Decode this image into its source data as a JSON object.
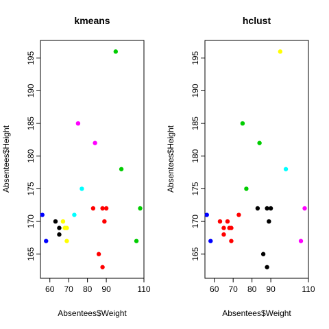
{
  "chart_data": [
    {
      "type": "scatter",
      "title": "kmeans",
      "xlabel": "Absentees$Weight",
      "ylabel": "Absentees$Height",
      "xlim": [
        55,
        110
      ],
      "ylim": [
        161.3,
        197.7
      ],
      "xticks": [
        60,
        70,
        80,
        90,
        110
      ],
      "yticks": [
        165,
        170,
        175,
        180,
        185,
        190,
        195
      ],
      "grid": false,
      "points": [
        {
          "x": 56,
          "y": 171,
          "color": "#0000FF"
        },
        {
          "x": 58,
          "y": 167,
          "color": "#0000FF"
        },
        {
          "x": 63,
          "y": 170,
          "color": "#000000"
        },
        {
          "x": 65,
          "y": 169,
          "color": "#000000"
        },
        {
          "x": 65,
          "y": 168,
          "color": "#000000"
        },
        {
          "x": 67,
          "y": 170,
          "color": "#FFFF00"
        },
        {
          "x": 68,
          "y": 169,
          "color": "#FFFF00"
        },
        {
          "x": 69,
          "y": 169,
          "color": "#FFFF00"
        },
        {
          "x": 69,
          "y": 167,
          "color": "#FFFF00"
        },
        {
          "x": 73,
          "y": 171,
          "color": "#00FFFF"
        },
        {
          "x": 75,
          "y": 185,
          "color": "#FF00FF"
        },
        {
          "x": 77,
          "y": 175,
          "color": "#00FFFF"
        },
        {
          "x": 83,
          "y": 172,
          "color": "#FF0000"
        },
        {
          "x": 84,
          "y": 182,
          "color": "#FF00FF"
        },
        {
          "x": 86,
          "y": 165,
          "color": "#FF0000"
        },
        {
          "x": 88,
          "y": 172,
          "color": "#FF0000"
        },
        {
          "x": 88,
          "y": 163,
          "color": "#FF0000"
        },
        {
          "x": 89,
          "y": 170,
          "color": "#FF0000"
        },
        {
          "x": 90,
          "y": 172,
          "color": "#FF0000"
        },
        {
          "x": 95,
          "y": 196,
          "color": "#00CD00"
        },
        {
          "x": 98,
          "y": 178,
          "color": "#00CD00"
        },
        {
          "x": 106,
          "y": 167,
          "color": "#00CD00"
        },
        {
          "x": 108,
          "y": 172,
          "color": "#00CD00"
        }
      ]
    },
    {
      "type": "scatter",
      "title": "hclust",
      "xlabel": "Absentees$Weight",
      "ylabel": "Absentees$Height",
      "xlim": [
        55,
        110
      ],
      "ylim": [
        161.3,
        197.7
      ],
      "xticks": [
        60,
        70,
        80,
        90,
        110
      ],
      "yticks": [
        165,
        170,
        175,
        180,
        185,
        190,
        195
      ],
      "grid": false,
      "points": [
        {
          "x": 56,
          "y": 171,
          "color": "#0000FF"
        },
        {
          "x": 58,
          "y": 167,
          "color": "#0000FF"
        },
        {
          "x": 63,
          "y": 170,
          "color": "#FF0000"
        },
        {
          "x": 65,
          "y": 169,
          "color": "#FF0000"
        },
        {
          "x": 65,
          "y": 168,
          "color": "#FF0000"
        },
        {
          "x": 67,
          "y": 170,
          "color": "#FF0000"
        },
        {
          "x": 68,
          "y": 169,
          "color": "#FF0000"
        },
        {
          "x": 69,
          "y": 169,
          "color": "#FF0000"
        },
        {
          "x": 69,
          "y": 167,
          "color": "#FF0000"
        },
        {
          "x": 73,
          "y": 171,
          "color": "#FF0000"
        },
        {
          "x": 75,
          "y": 185,
          "color": "#00CD00"
        },
        {
          "x": 77,
          "y": 175,
          "color": "#00CD00"
        },
        {
          "x": 83,
          "y": 172,
          "color": "#000000"
        },
        {
          "x": 84,
          "y": 182,
          "color": "#00CD00"
        },
        {
          "x": 86,
          "y": 165,
          "color": "#000000"
        },
        {
          "x": 88,
          "y": 172,
          "color": "#000000"
        },
        {
          "x": 88,
          "y": 163,
          "color": "#000000"
        },
        {
          "x": 89,
          "y": 170,
          "color": "#000000"
        },
        {
          "x": 90,
          "y": 172,
          "color": "#000000"
        },
        {
          "x": 95,
          "y": 196,
          "color": "#FFFF00"
        },
        {
          "x": 98,
          "y": 178,
          "color": "#00FFFF"
        },
        {
          "x": 106,
          "y": 167,
          "color": "#FF00FF"
        },
        {
          "x": 108,
          "y": 172,
          "color": "#FF00FF"
        }
      ]
    }
  ]
}
